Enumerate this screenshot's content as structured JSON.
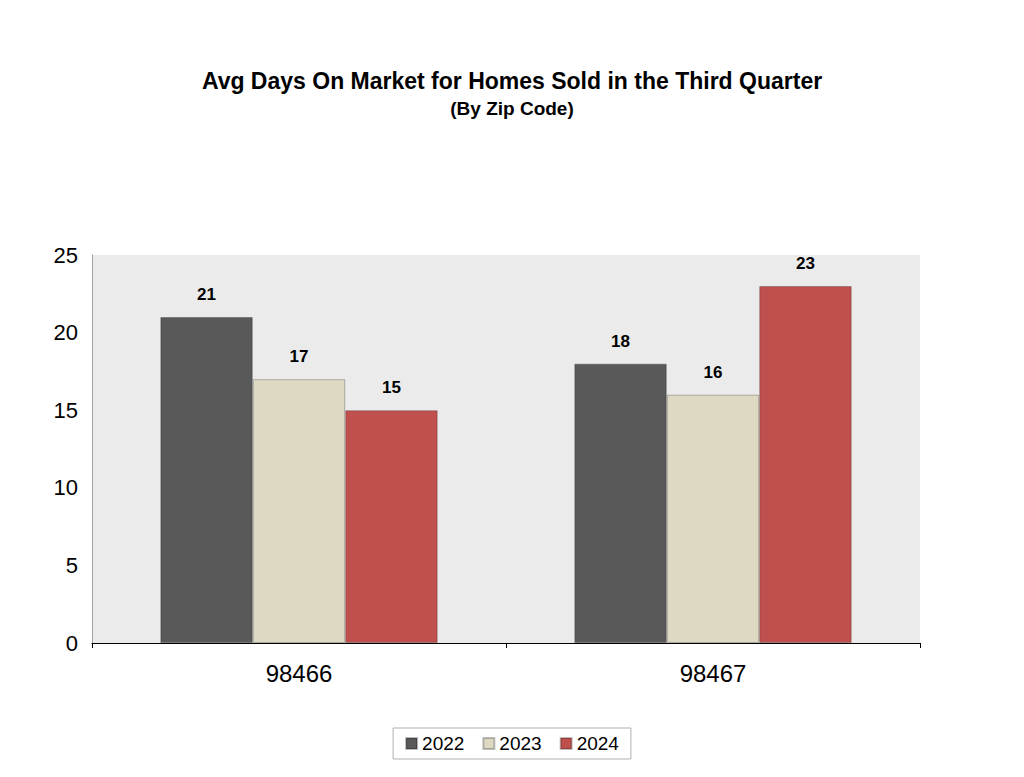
{
  "chart_data": {
    "type": "bar",
    "title": "Avg Days On Market for Homes Sold in the Third Quarter",
    "subtitle": "(By Zip Code)",
    "categories": [
      "98466",
      "98467"
    ],
    "series": [
      {
        "name": "2022",
        "color": "#595959",
        "values": [
          21,
          18
        ]
      },
      {
        "name": "2023",
        "color": "#ddd9c3",
        "values": [
          17,
          16
        ]
      },
      {
        "name": "2024",
        "color": "#c0504d",
        "values": [
          15,
          23
        ]
      }
    ],
    "ylim": [
      0,
      25
    ],
    "yticks": [
      0,
      5,
      10,
      15,
      20,
      25
    ],
    "grid": false,
    "legend": "bottom",
    "data_labels": true
  }
}
